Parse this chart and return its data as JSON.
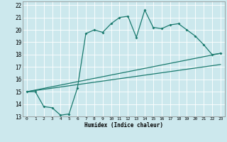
{
  "xlabel": "Humidex (Indice chaleur)",
  "xlim": [
    -0.5,
    23.5
  ],
  "ylim": [
    13,
    22.3
  ],
  "xticks": [
    0,
    1,
    2,
    3,
    4,
    5,
    6,
    7,
    8,
    9,
    10,
    11,
    12,
    13,
    14,
    15,
    16,
    17,
    18,
    19,
    20,
    21,
    22,
    23
  ],
  "yticks": [
    13,
    14,
    15,
    16,
    17,
    18,
    19,
    20,
    21,
    22
  ],
  "bg_color": "#cce8ed",
  "line_color": "#1a7a6e",
  "grid_color": "#ffffff",
  "line1_x": [
    0,
    1,
    2,
    3,
    4,
    5,
    6,
    7,
    8,
    9,
    10,
    11,
    12,
    13,
    14,
    15,
    16,
    17,
    18,
    19,
    20,
    21,
    22,
    23
  ],
  "line1_y": [
    15.0,
    15.0,
    13.8,
    13.7,
    13.1,
    13.2,
    15.3,
    19.7,
    20.0,
    19.8,
    20.5,
    21.0,
    21.1,
    19.4,
    21.6,
    20.2,
    20.1,
    20.4,
    20.5,
    20.0,
    19.5,
    18.8,
    18.0,
    18.1
  ],
  "line2_x": [
    0,
    23
  ],
  "line2_y": [
    15.0,
    18.1
  ],
  "line3_x": [
    0,
    23
  ],
  "line3_y": [
    15.0,
    17.2
  ]
}
